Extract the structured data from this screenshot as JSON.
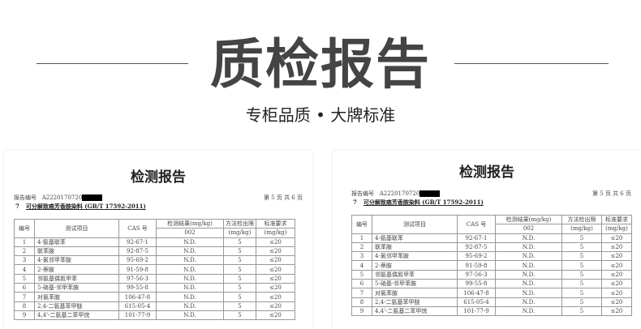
{
  "banner": {
    "title": "质检报告",
    "subtitle": "专柜品质 • 大牌标准"
  },
  "report": {
    "title": "检测报告",
    "report_no_label": "报告编号",
    "report_no": "A2220170720",
    "page_info": "第 5 页  共 6 页",
    "section_no": "7",
    "section_title": "可分解致癌芳香胺染料 (GB/T 17592-2011)",
    "headers": {
      "no": "编号",
      "item": "测试项目",
      "cas": "CAS 号",
      "result": "检测结果(mg/kg)",
      "result_sub": "002",
      "limit": "方法检出限",
      "limit_unit": "(mg/kg)",
      "req": "标准要求",
      "req_unit": "(mg/kg)"
    },
    "rows": [
      {
        "no": "1",
        "item": "4-氨基联苯",
        "cas": "92-67-1",
        "result": "N.D.",
        "limit": "5",
        "req": "≤20"
      },
      {
        "no": "2",
        "item": "联苯胺",
        "cas": "92-87-5",
        "result": "N.D.",
        "limit": "5",
        "req": "≤20"
      },
      {
        "no": "3",
        "item": "4-氯邻甲苯胺",
        "cas": "95-69-2",
        "result": "N.D.",
        "limit": "5",
        "req": "≤20"
      },
      {
        "no": "4",
        "item": "2-萘胺",
        "cas": "91-59-8",
        "result": "N.D.",
        "limit": "5",
        "req": "≤20"
      },
      {
        "no": "5",
        "item": "邻氨基偶氮甲苯",
        "cas": "97-56-3",
        "result": "N.D.",
        "limit": "5",
        "req": "≤20"
      },
      {
        "no": "6",
        "item": "5-硝基-邻甲苯胺",
        "cas": "99-55-8",
        "result": "N.D.",
        "limit": "5",
        "req": "≤20"
      },
      {
        "no": "7",
        "item": "对氯苯胺",
        "cas": "106-47-8",
        "result": "N.D.",
        "limit": "5",
        "req": "≤20"
      },
      {
        "no": "8",
        "item": "2,4-二氨基苯甲醚",
        "cas": "615-05-4",
        "result": "N.D.",
        "limit": "5",
        "req": "≤20"
      },
      {
        "no": "9",
        "item": "4,4'-二氨基二苯甲烷",
        "cas": "101-77-9",
        "result": "N.D.",
        "limit": "5",
        "req": "≤20"
      }
    ]
  }
}
